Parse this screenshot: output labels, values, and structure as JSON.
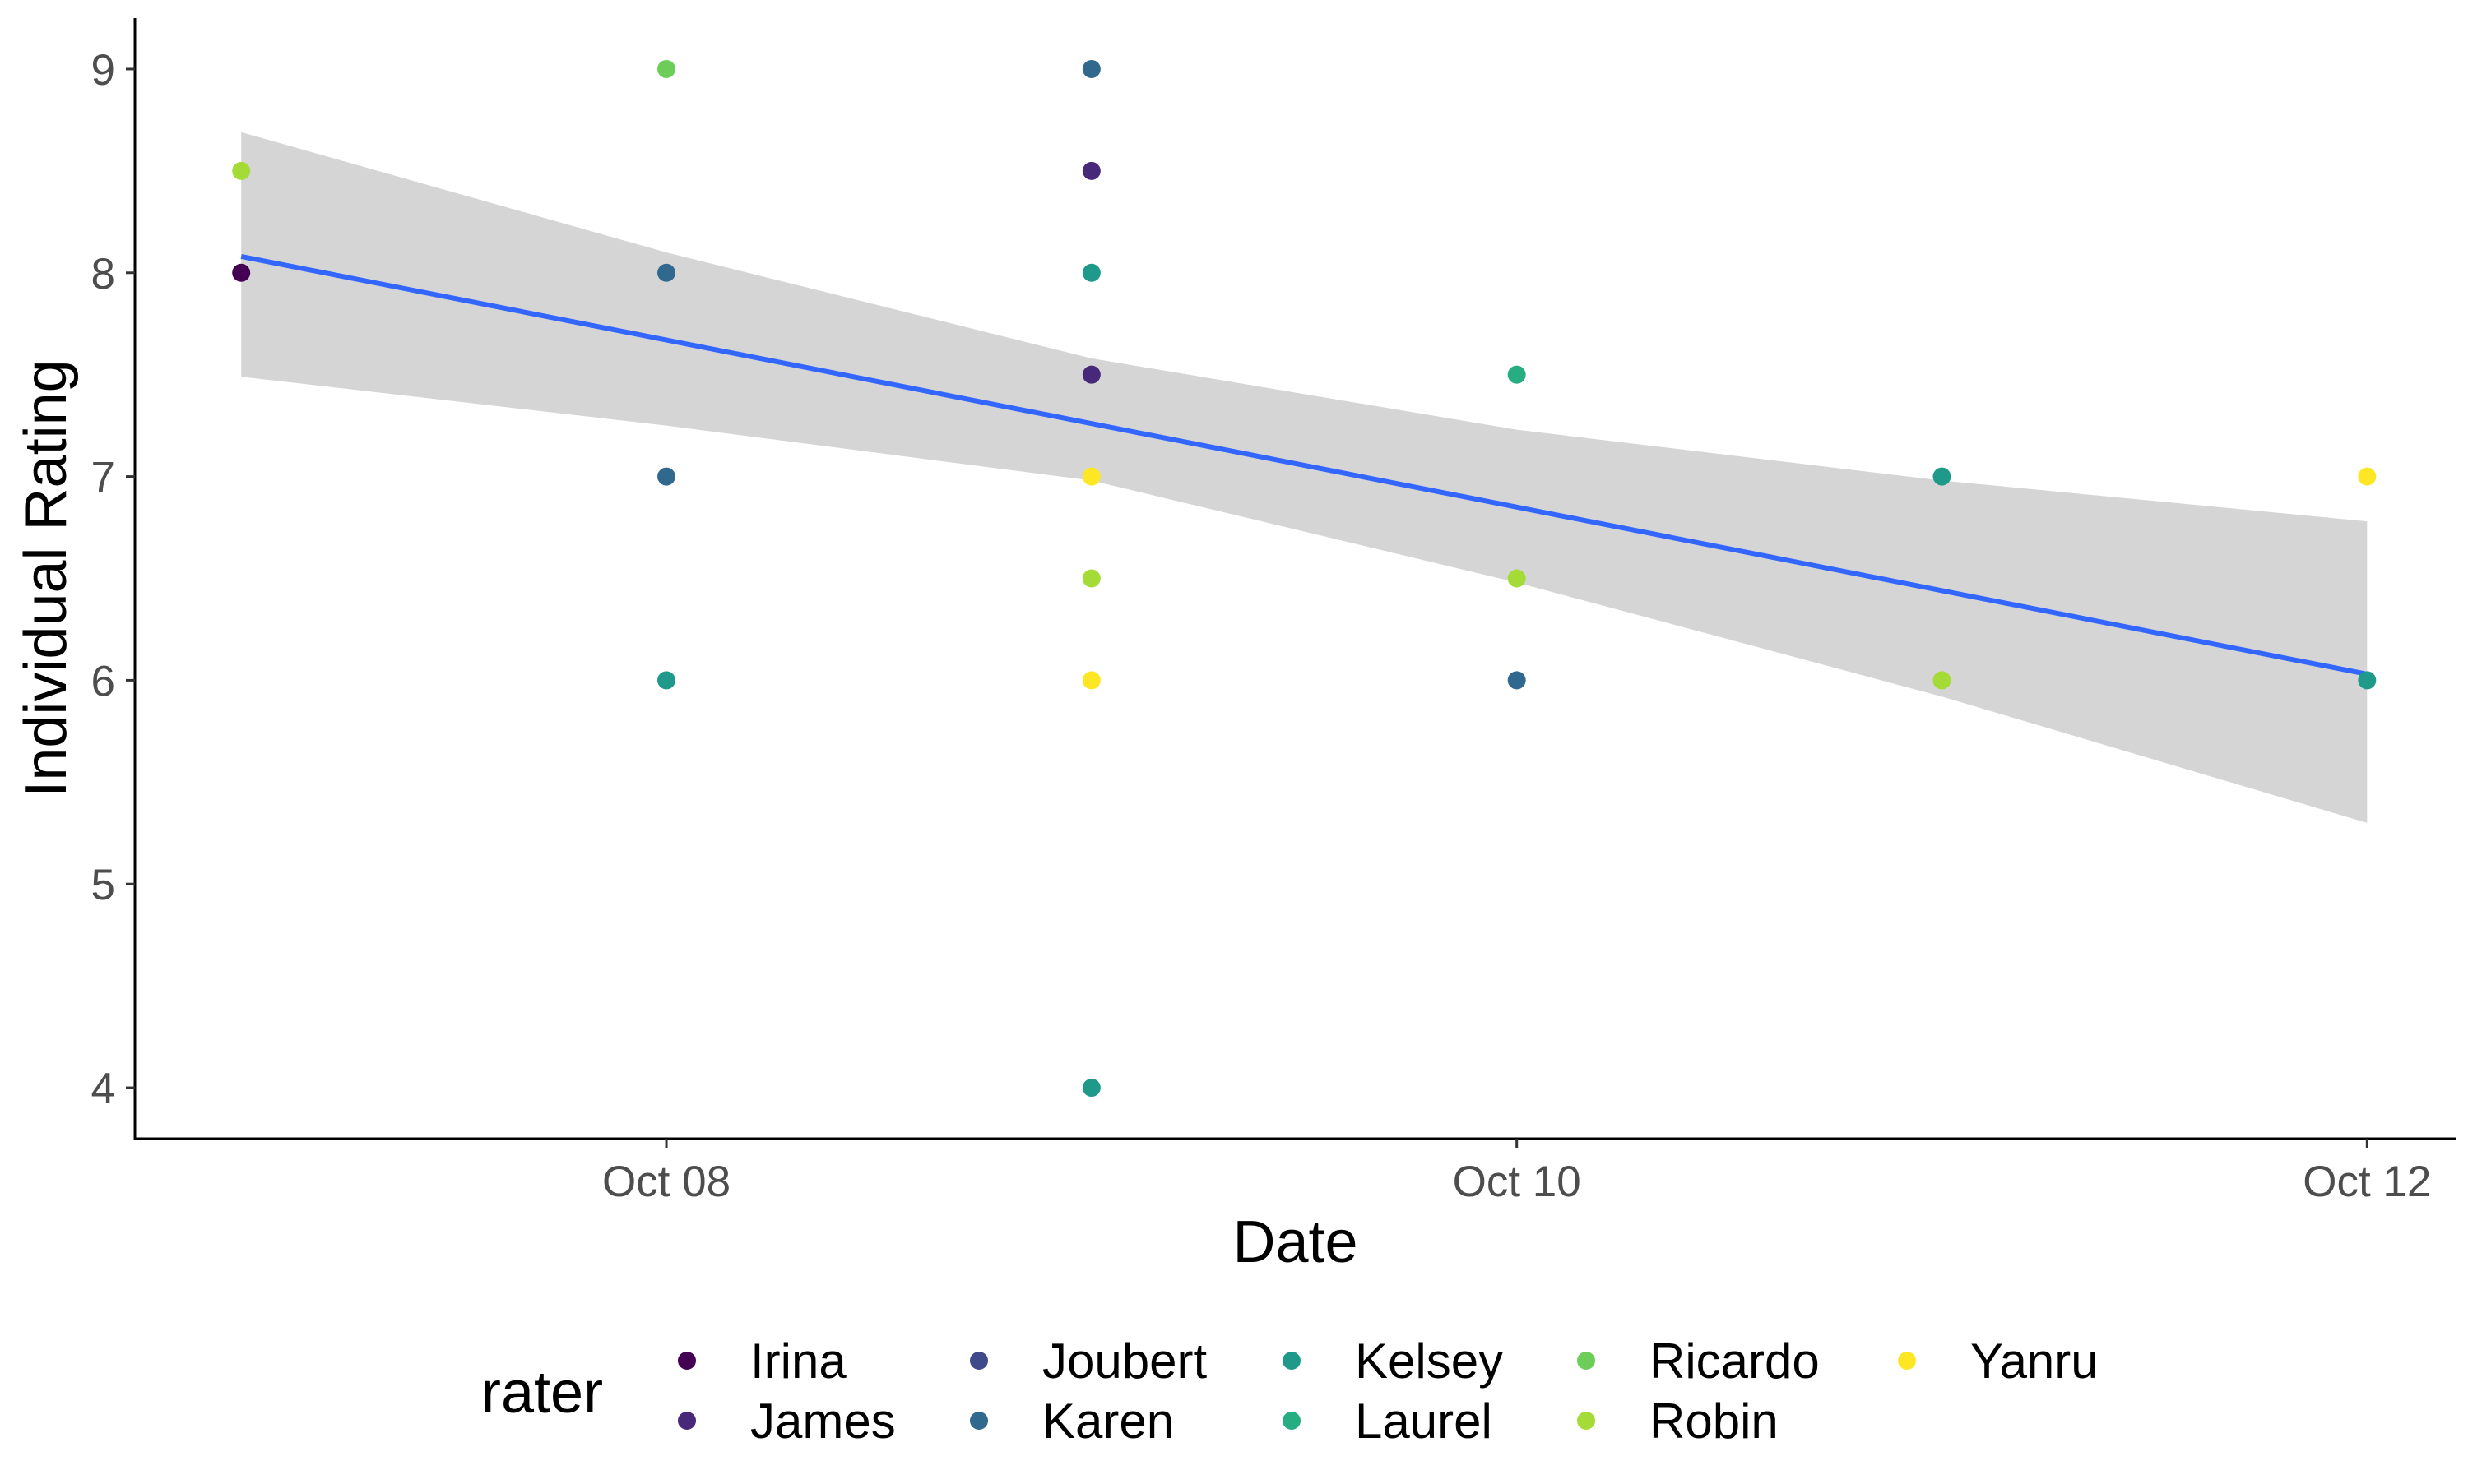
{
  "chart_data": {
    "type": "scatter",
    "xlabel": "Date",
    "ylabel": "Individual Rating",
    "x_type": "date",
    "xlim": [
      "2023-10-06 18:00",
      "2023-10-12 05:00"
    ],
    "ylim": [
      3.75,
      9.25
    ],
    "x_ticks": [
      {
        "value": "2023-10-08",
        "label": "Oct 08"
      },
      {
        "value": "2023-10-10",
        "label": "Oct 10"
      },
      {
        "value": "2023-10-12",
        "label": "Oct 12"
      }
    ],
    "y_ticks": [
      4,
      5,
      6,
      7,
      8,
      9
    ],
    "grid": false,
    "legend": {
      "title": "rater",
      "position": "bottom",
      "columns": [
        [
          "Irina",
          "James"
        ],
        [
          "Joubert",
          "Karen"
        ],
        [
          "Kelsey",
          "Laurel"
        ],
        [
          "Ricardo",
          "Robin"
        ],
        [
          "Yanru"
        ]
      ]
    },
    "series": [
      {
        "name": "Irina",
        "color": "#440154",
        "points": [
          {
            "x": "2023-10-07",
            "y": 8
          }
        ]
      },
      {
        "name": "James",
        "color": "#482878",
        "points": [
          {
            "x": "2023-10-09",
            "y": 8.5
          },
          {
            "x": "2023-10-09",
            "y": 7.5
          }
        ]
      },
      {
        "name": "Joubert",
        "color": "#3E4A89",
        "points": []
      },
      {
        "name": "Karen",
        "color": "#31688E",
        "points": [
          {
            "x": "2023-10-08",
            "y": 8
          },
          {
            "x": "2023-10-08",
            "y": 7
          },
          {
            "x": "2023-10-09",
            "y": 9
          },
          {
            "x": "2023-10-10",
            "y": 6
          }
        ]
      },
      {
        "name": "Kelsey",
        "color": "#1F9A8A",
        "points": [
          {
            "x": "2023-10-08",
            "y": 6
          },
          {
            "x": "2023-10-09",
            "y": 8
          },
          {
            "x": "2023-10-09",
            "y": 4
          },
          {
            "x": "2023-10-11",
            "y": 7
          },
          {
            "x": "2023-10-12",
            "y": 6
          }
        ]
      },
      {
        "name": "Laurel",
        "color": "#26AD81",
        "points": [
          {
            "x": "2023-10-10",
            "y": 7.5
          }
        ]
      },
      {
        "name": "Ricardo",
        "color": "#6CCE59",
        "points": [
          {
            "x": "2023-10-08",
            "y": 9
          }
        ]
      },
      {
        "name": "Robin",
        "color": "#A5DB36",
        "points": [
          {
            "x": "2023-10-07",
            "y": 8.5
          },
          {
            "x": "2023-10-09",
            "y": 6.5
          },
          {
            "x": "2023-10-10",
            "y": 6.5
          },
          {
            "x": "2023-10-11",
            "y": 6
          }
        ]
      },
      {
        "name": "Yanru",
        "color": "#FDE725",
        "points": [
          {
            "x": "2023-10-09",
            "y": 7
          },
          {
            "x": "2023-10-09",
            "y": 6
          },
          {
            "x": "2023-10-12",
            "y": 7
          }
        ]
      }
    ],
    "trend": {
      "method": "linear",
      "color": "#3366FF",
      "band_color": "#D5D5D5",
      "line": [
        {
          "x": "2023-10-07",
          "y": 8.08
        },
        {
          "x": "2023-10-12",
          "y": 6.03
        }
      ],
      "band": [
        {
          "x": "2023-10-07",
          "lo": 7.49,
          "hi": 8.69
        },
        {
          "x": "2023-10-08",
          "lo": 7.25,
          "hi": 8.1
        },
        {
          "x": "2023-10-09",
          "lo": 6.98,
          "hi": 7.58
        },
        {
          "x": "2023-10-10",
          "lo": 6.48,
          "hi": 7.23
        },
        {
          "x": "2023-10-11",
          "lo": 5.92,
          "hi": 6.98
        },
        {
          "x": "2023-10-12",
          "lo": 5.3,
          "hi": 6.78
        }
      ]
    }
  }
}
